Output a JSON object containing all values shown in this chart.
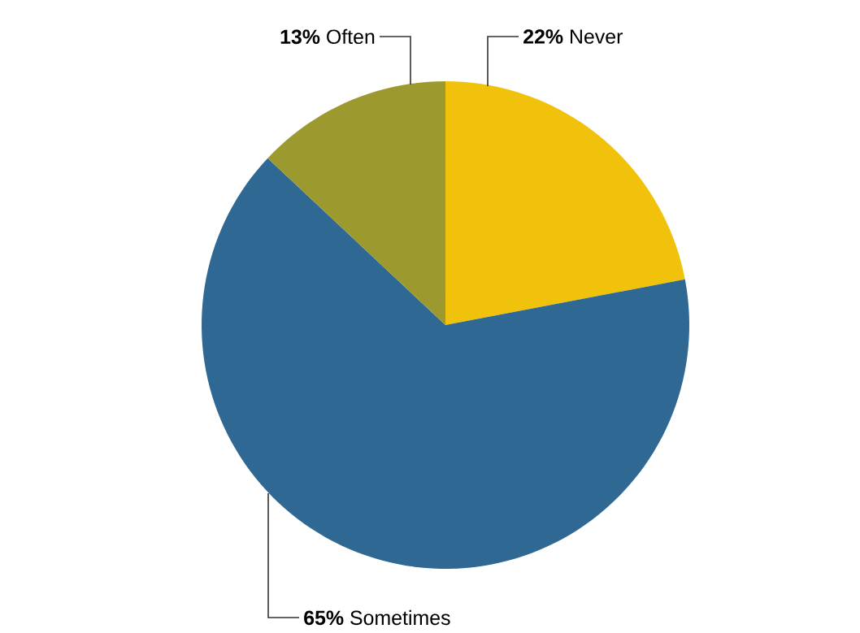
{
  "chart_data": {
    "type": "pie",
    "categories": [
      "Never",
      "Sometimes",
      "Often"
    ],
    "values": [
      22,
      65,
      13
    ],
    "value_labels": [
      "22%",
      "65%",
      "13%"
    ],
    "colors": [
      "#f0c20c",
      "#2f6892",
      "#9c9a2e"
    ]
  }
}
